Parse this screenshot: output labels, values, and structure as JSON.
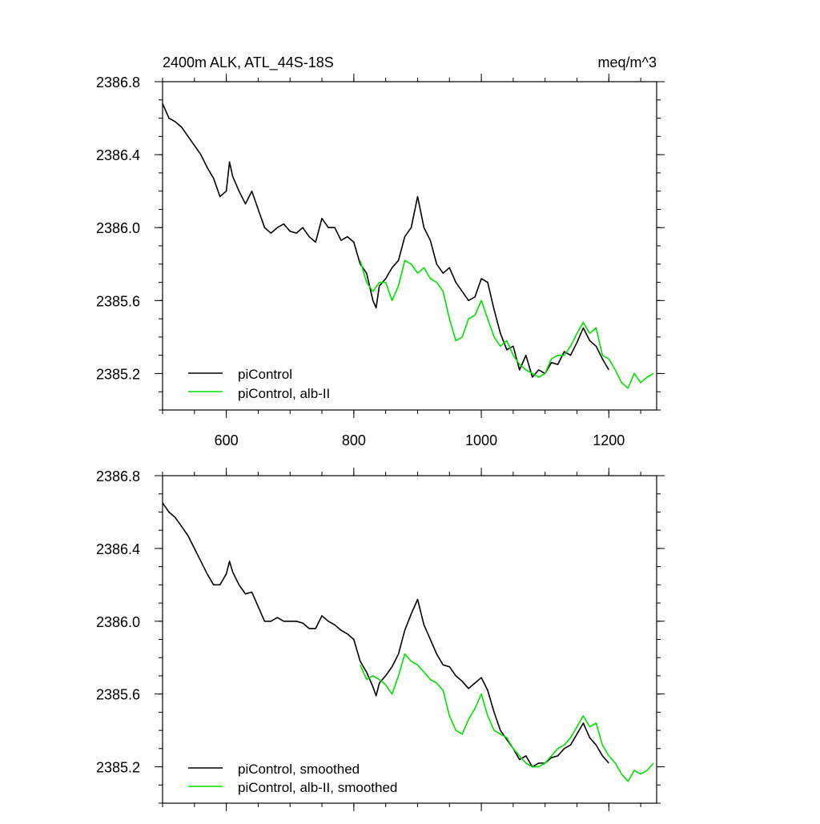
{
  "chart_data": [
    {
      "type": "line",
      "title": "2400m ALK, ATL_44S-18S",
      "units": "meq/m^3",
      "xlim": [
        500,
        1275
      ],
      "ylim": [
        2385.0,
        2386.8
      ],
      "xticks": [
        600,
        800,
        1000,
        1200
      ],
      "xticklabels": [
        "600",
        "800",
        "1000",
        "1200"
      ],
      "yticks": [
        2385.2,
        2385.6,
        2386.0,
        2386.4,
        2386.8
      ],
      "yticklabels": [
        "2385.2",
        "2385.6",
        "2386.0",
        "2386.4",
        "2386.8"
      ],
      "legend_position": "bottom-left",
      "series": [
        {
          "name": "piControl",
          "color": "#000000",
          "x": [
            500,
            510,
            520,
            530,
            540,
            550,
            560,
            570,
            580,
            590,
            600,
            605,
            610,
            620,
            630,
            640,
            650,
            660,
            670,
            680,
            690,
            700,
            710,
            720,
            730,
            740,
            750,
            760,
            770,
            780,
            790,
            800,
            810,
            820,
            830,
            835,
            840,
            850,
            860,
            870,
            880,
            890,
            900,
            910,
            920,
            930,
            940,
            950,
            960,
            970,
            980,
            990,
            1000,
            1010,
            1020,
            1030,
            1040,
            1050,
            1060,
            1070,
            1080,
            1090,
            1100,
            1110,
            1120,
            1130,
            1140,
            1150,
            1160,
            1170,
            1180,
            1190,
            1200
          ],
          "y": [
            2386.68,
            2386.6,
            2386.58,
            2386.55,
            2386.5,
            2386.45,
            2386.4,
            2386.33,
            2386.27,
            2386.17,
            2386.2,
            2386.36,
            2386.28,
            2386.2,
            2386.13,
            2386.2,
            2386.1,
            2386.0,
            2385.97,
            2386.0,
            2386.02,
            2385.98,
            2385.97,
            2386.0,
            2385.95,
            2385.92,
            2386.05,
            2386.0,
            2386.0,
            2385.93,
            2385.95,
            2385.92,
            2385.8,
            2385.75,
            2385.6,
            2385.56,
            2385.68,
            2385.72,
            2385.78,
            2385.82,
            2385.95,
            2386.0,
            2386.17,
            2386.0,
            2385.93,
            2385.8,
            2385.75,
            2385.78,
            2385.7,
            2385.65,
            2385.6,
            2385.62,
            2385.72,
            2385.7,
            2385.55,
            2385.42,
            2385.33,
            2385.35,
            2385.22,
            2385.3,
            2385.18,
            2385.22,
            2385.2,
            2385.26,
            2385.25,
            2385.32,
            2385.3,
            2385.37,
            2385.45,
            2385.38,
            2385.35,
            2385.28,
            2385.22
          ]
        },
        {
          "name": "piControl, alb-II",
          "color": "#00e000",
          "x": [
            810,
            820,
            830,
            840,
            850,
            860,
            870,
            880,
            890,
            900,
            910,
            920,
            930,
            940,
            950,
            960,
            970,
            980,
            990,
            1000,
            1010,
            1020,
            1030,
            1040,
            1050,
            1060,
            1070,
            1080,
            1090,
            1100,
            1110,
            1120,
            1130,
            1140,
            1150,
            1160,
            1170,
            1180,
            1190,
            1200,
            1210,
            1220,
            1230,
            1240,
            1250,
            1260,
            1270
          ],
          "y": [
            2385.82,
            2385.7,
            2385.65,
            2385.7,
            2385.7,
            2385.6,
            2385.68,
            2385.82,
            2385.8,
            2385.75,
            2385.78,
            2385.72,
            2385.7,
            2385.65,
            2385.5,
            2385.38,
            2385.4,
            2385.5,
            2385.52,
            2385.6,
            2385.5,
            2385.4,
            2385.35,
            2385.38,
            2385.3,
            2385.25,
            2385.22,
            2385.2,
            2385.18,
            2385.2,
            2385.28,
            2385.3,
            2385.3,
            2385.35,
            2385.42,
            2385.48,
            2385.42,
            2385.45,
            2385.3,
            2385.28,
            2385.22,
            2385.15,
            2385.12,
            2385.2,
            2385.15,
            2385.18,
            2385.2
          ]
        }
      ]
    },
    {
      "type": "line",
      "xlim": [
        500,
        1275
      ],
      "ylim": [
        2385.0,
        2386.8
      ],
      "xticks": [
        600,
        800,
        1000,
        1200
      ],
      "yticks": [
        2385.2,
        2385.6,
        2386.0,
        2386.4,
        2386.8
      ],
      "yticklabels": [
        "2385.2",
        "2385.6",
        "2386.0",
        "2386.4",
        "2386.8"
      ],
      "legend_position": "bottom-left",
      "series": [
        {
          "name": "piControl, smoothed",
          "color": "#000000",
          "x": [
            500,
            510,
            520,
            530,
            540,
            550,
            560,
            570,
            580,
            590,
            600,
            605,
            610,
            620,
            630,
            640,
            650,
            660,
            670,
            680,
            690,
            700,
            710,
            720,
            730,
            740,
            750,
            760,
            770,
            780,
            790,
            800,
            810,
            820,
            830,
            835,
            840,
            850,
            860,
            870,
            880,
            890,
            900,
            910,
            920,
            930,
            940,
            950,
            960,
            970,
            980,
            990,
            1000,
            1010,
            1020,
            1030,
            1040,
            1050,
            1060,
            1070,
            1080,
            1090,
            1100,
            1110,
            1120,
            1130,
            1140,
            1150,
            1160,
            1170,
            1180,
            1190,
            1200
          ],
          "y": [
            2386.65,
            2386.6,
            2386.57,
            2386.52,
            2386.47,
            2386.4,
            2386.33,
            2386.26,
            2386.2,
            2386.2,
            2386.26,
            2386.33,
            2386.27,
            2386.2,
            2386.15,
            2386.16,
            2386.08,
            2386.0,
            2386.0,
            2386.02,
            2386.0,
            2386.0,
            2386.0,
            2385.99,
            2385.96,
            2385.96,
            2386.03,
            2386.0,
            2385.98,
            2385.95,
            2385.93,
            2385.9,
            2385.78,
            2385.72,
            2385.64,
            2385.59,
            2385.66,
            2385.7,
            2385.75,
            2385.82,
            2385.95,
            2386.04,
            2386.12,
            2385.98,
            2385.9,
            2385.82,
            2385.76,
            2385.75,
            2385.7,
            2385.67,
            2385.63,
            2385.66,
            2385.69,
            2385.62,
            2385.5,
            2385.4,
            2385.35,
            2385.3,
            2385.24,
            2385.26,
            2385.2,
            2385.22,
            2385.22,
            2385.25,
            2385.26,
            2385.3,
            2385.32,
            2385.38,
            2385.44,
            2385.36,
            2385.32,
            2385.26,
            2385.22
          ]
        },
        {
          "name": "piControl, alb-II, smoothed",
          "color": "#00e000",
          "x": [
            810,
            820,
            830,
            840,
            850,
            860,
            870,
            880,
            890,
            900,
            910,
            920,
            930,
            940,
            950,
            960,
            970,
            980,
            990,
            1000,
            1010,
            1020,
            1030,
            1040,
            1050,
            1060,
            1070,
            1080,
            1090,
            1100,
            1110,
            1120,
            1130,
            1140,
            1150,
            1160,
            1170,
            1180,
            1190,
            1200,
            1210,
            1220,
            1230,
            1240,
            1250,
            1260,
            1270
          ],
          "y": [
            2385.76,
            2385.68,
            2385.7,
            2385.68,
            2385.65,
            2385.6,
            2385.7,
            2385.82,
            2385.78,
            2385.76,
            2385.72,
            2385.68,
            2385.66,
            2385.62,
            2385.48,
            2385.4,
            2385.38,
            2385.46,
            2385.52,
            2385.6,
            2385.48,
            2385.4,
            2385.38,
            2385.36,
            2385.3,
            2385.26,
            2385.22,
            2385.2,
            2385.2,
            2385.22,
            2385.26,
            2385.3,
            2385.32,
            2385.36,
            2385.42,
            2385.48,
            2385.42,
            2385.44,
            2385.32,
            2385.26,
            2385.22,
            2385.16,
            2385.12,
            2385.18,
            2385.16,
            2385.18,
            2385.22
          ]
        }
      ]
    }
  ]
}
